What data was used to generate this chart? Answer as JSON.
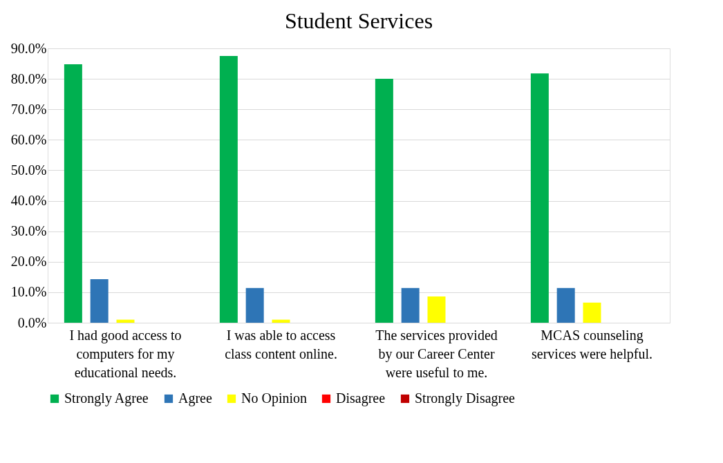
{
  "chart_data": {
    "type": "bar",
    "title": "Student Services",
    "categories": [
      "I had good access to computers for my educational needs.",
      "I was able to access class content online.",
      "The services provided by our Career Center were useful to me.",
      "MCAS counseling services were helpful."
    ],
    "series": [
      {
        "name": "Strongly Agree",
        "color": "#00b050",
        "values": [
          84.8,
          87.5,
          80.0,
          81.8
        ]
      },
      {
        "name": "Agree",
        "color": "#2e75b6",
        "values": [
          14.3,
          11.4,
          11.4,
          11.4
        ]
      },
      {
        "name": "No Opinion",
        "color": "#ffff00",
        "values": [
          1.0,
          1.0,
          8.6,
          6.6
        ]
      },
      {
        "name": "Disagree",
        "color": "#ff0000",
        "values": [
          0,
          0,
          0,
          0
        ]
      },
      {
        "name": "Strongly Disagree",
        "color": "#c00000",
        "values": [
          0,
          0,
          0,
          0
        ]
      }
    ],
    "ylim": [
      0,
      90
    ],
    "yticks": [
      {
        "value": 0,
        "label": "0.0%"
      },
      {
        "value": 10,
        "label": "10.0%"
      },
      {
        "value": 20,
        "label": "20.0%"
      },
      {
        "value": 30,
        "label": "30.0%"
      },
      {
        "value": 40,
        "label": "40.0%"
      },
      {
        "value": 50,
        "label": "50.0%"
      },
      {
        "value": 60,
        "label": "60.0%"
      },
      {
        "value": 70,
        "label": "70.0%"
      },
      {
        "value": 80,
        "label": "80.0%"
      },
      {
        "value": 90,
        "label": "90.0%"
      }
    ],
    "grid": "y",
    "legend": "bottom"
  }
}
